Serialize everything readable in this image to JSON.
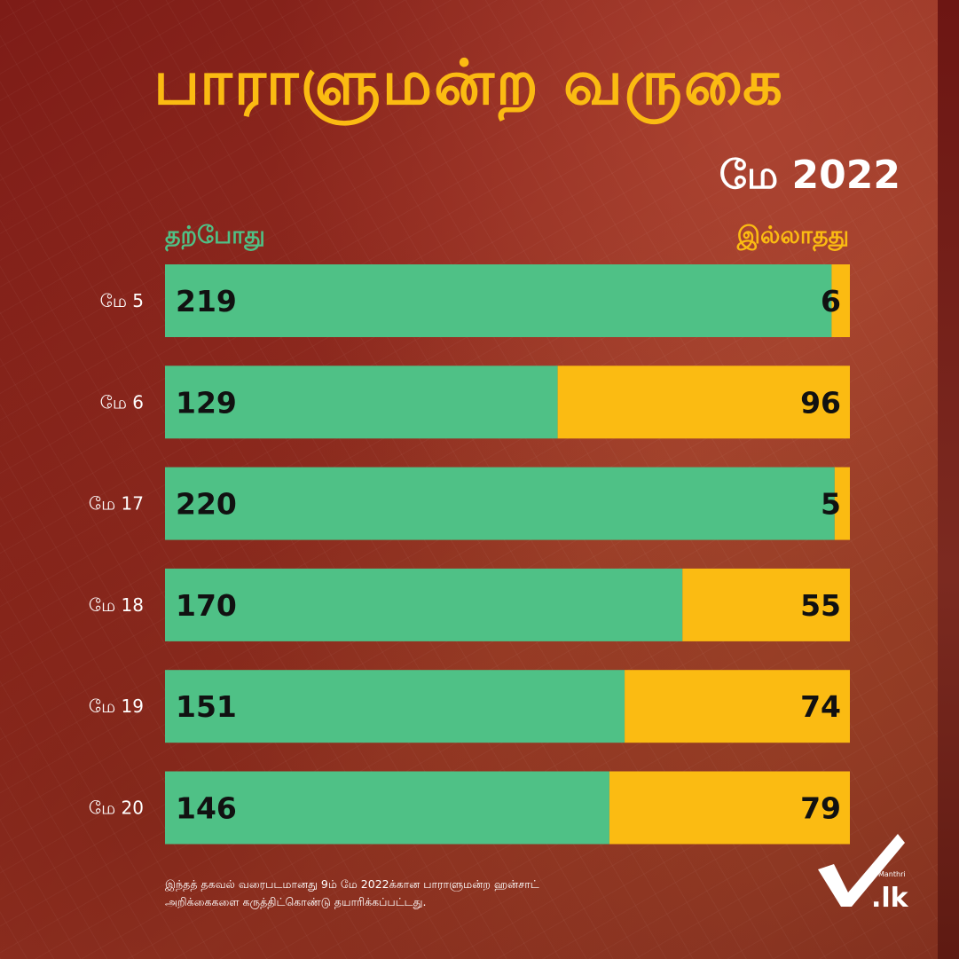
{
  "header": {
    "title": "பாராளுமன்ற வருகை",
    "subtitle": "மே 2022"
  },
  "legend": {
    "present": "தற்போது",
    "absent": "இல்லாதது"
  },
  "colors": {
    "present": "#4fc186",
    "absent": "#fbbb12",
    "title": "#fbbb12"
  },
  "chart_data": {
    "type": "bar",
    "stacked": true,
    "orientation": "horizontal",
    "categories": [
      "மே 5",
      "மே 6",
      "மே 17",
      "மே 18",
      "மே 19",
      "மே 20"
    ],
    "series": [
      {
        "name": "தற்போது",
        "values": [
          219,
          129,
          220,
          170,
          151,
          146
        ]
      },
      {
        "name": "இல்லாதது",
        "values": [
          6,
          96,
          5,
          55,
          74,
          79
        ]
      }
    ],
    "legend_position": "top",
    "grid": false
  },
  "footnote": {
    "line1": "இந்தத் தகவல் வரைபடமானது 9ம் மே 2022க்கான பாராளுமன்ற ஹன்சாட்",
    "line2": "அறிக்கைகளை கருத்திட்கொண்டு தயாரிக்கப்பட்டது."
  },
  "logo": {
    "small_text": "Manthri",
    "main_text": ".lk"
  }
}
